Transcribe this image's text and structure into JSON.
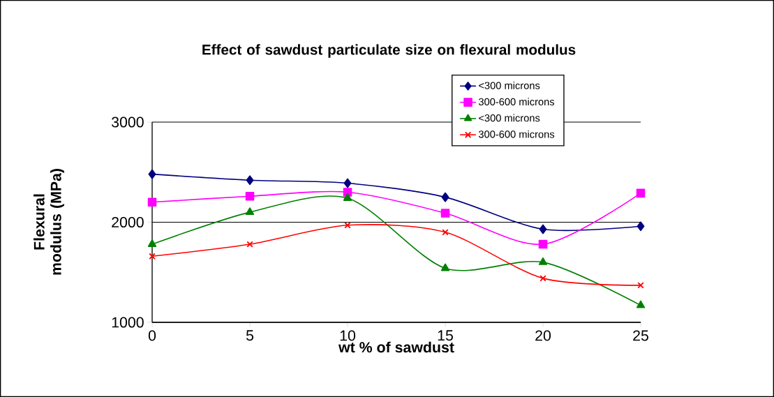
{
  "chart_data": {
    "type": "line",
    "title": "Effect of  sawdust particulate size on flexural modulus",
    "xlabel": "wt % of sawdust",
    "ylabel": "Flexural modulus (MPa)",
    "x": [
      0,
      5,
      10,
      15,
      20,
      25
    ],
    "series": [
      {
        "name": "<300 microns",
        "color": "#000080",
        "marker": "diamond",
        "values": [
          2480,
          2420,
          2390,
          2250,
          1930,
          1960
        ]
      },
      {
        "name": "300-600 microns",
        "color": "#ff00ff",
        "marker": "square",
        "values": [
          2200,
          2260,
          2300,
          2090,
          1780,
          2290
        ]
      },
      {
        "name": "<300 microns",
        "color": "#008000",
        "marker": "triangle",
        "values": [
          1780,
          2100,
          2240,
          1540,
          1600,
          1170
        ]
      },
      {
        "name": "300-600 microns",
        "color": "#ff0000",
        "marker": "cross",
        "values": [
          1660,
          1780,
          1970,
          1900,
          1440,
          1370
        ]
      }
    ],
    "xlim": [
      0,
      25
    ],
    "xticks": [
      0,
      5,
      10,
      15,
      20,
      25
    ],
    "ylim": [
      1000,
      3000
    ],
    "yticks": [
      1000,
      2000,
      3000
    ],
    "grid": "y",
    "legend": "top right",
    "line_style": "solid"
  }
}
